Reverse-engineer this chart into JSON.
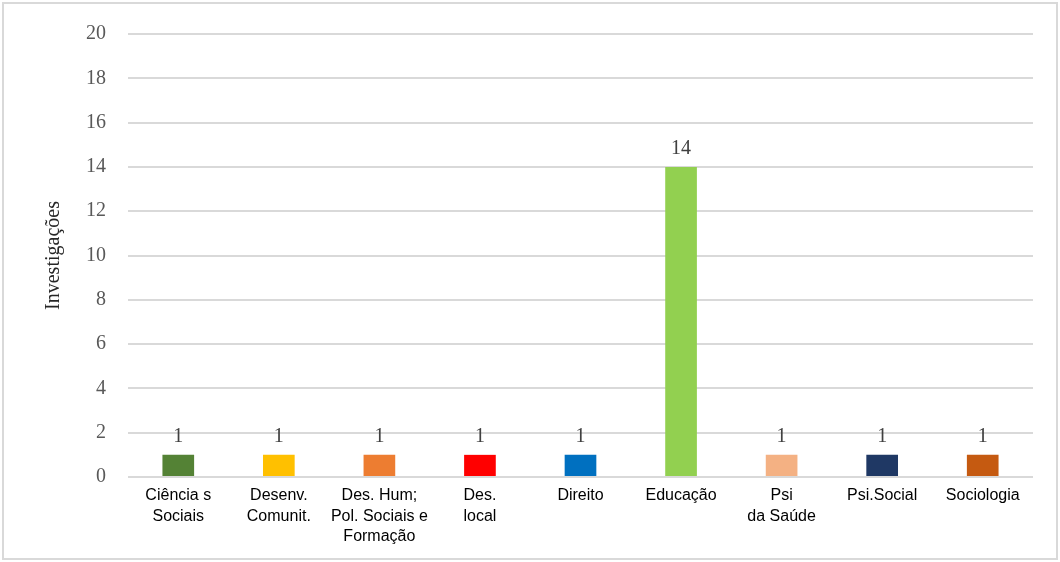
{
  "chart_data": {
    "type": "bar",
    "ylabel": "Investigações",
    "categories": [
      "Ciência s\nSociais",
      "Desenv.\nComunit.",
      "Des. Hum;\nPol. Sociais e\nFormação",
      "Des.\nlocal",
      "Direito",
      "Educação",
      "Psi\nda Saúde",
      "Psi.Social",
      "Sociologia"
    ],
    "values": [
      1,
      1,
      1,
      1,
      1,
      14,
      1,
      1,
      1
    ],
    "colors": [
      "#548235",
      "#ffc000",
      "#ed7d31",
      "#ff0000",
      "#0070c0",
      "#92d050",
      "#f4b183",
      "#1f3864",
      "#c55a11"
    ],
    "ylim": [
      0,
      20
    ],
    "yticks": [
      0,
      2,
      4,
      6,
      8,
      10,
      12,
      14,
      16,
      18,
      20
    ],
    "grid": "y",
    "data_labels": true,
    "legend": false
  }
}
